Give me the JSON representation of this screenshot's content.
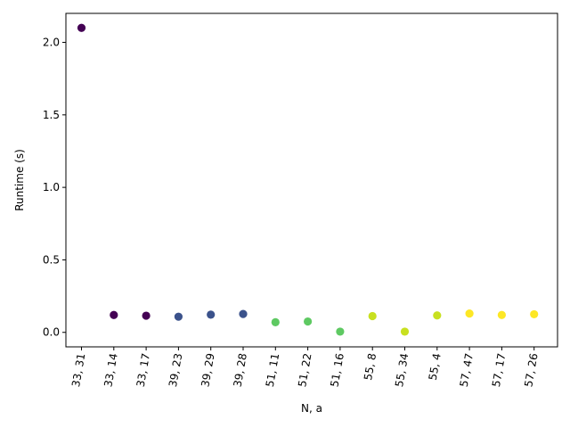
{
  "chart_data": {
    "type": "scatter",
    "title": "",
    "xlabel": "N, a",
    "ylabel": "Runtime (s)",
    "categories": [
      "33, 31",
      "33, 14",
      "33, 17",
      "39, 23",
      "39, 29",
      "39, 28",
      "51, 11",
      "51, 22",
      "51, 16",
      "55, 8",
      "55, 34",
      "55, 4",
      "57, 47",
      "57, 17",
      "57, 26"
    ],
    "values": [
      2.1,
      0.12,
      0.115,
      0.108,
      0.122,
      0.127,
      0.07,
      0.075,
      0.005,
      0.112,
      0.005,
      0.117,
      0.13,
      0.12,
      0.125
    ],
    "point_colors": [
      "#440154",
      "#440154",
      "#440154",
      "#3b528b",
      "#3b528b",
      "#3b528b",
      "#5ec962",
      "#5ec962",
      "#5ec962",
      "#c8e020",
      "#c8e020",
      "#c8e020",
      "#fde725",
      "#fde725",
      "#fde725"
    ],
    "yticks": [
      0.0,
      0.5,
      1.0,
      1.5,
      2.0
    ],
    "ytick_labels": [
      "0.0",
      "0.5",
      "1.0",
      "1.5",
      "2.0"
    ],
    "ylim": [
      -0.1,
      2.2
    ],
    "xtick_rotation_deg": -80,
    "grid": false,
    "legend": "none"
  }
}
